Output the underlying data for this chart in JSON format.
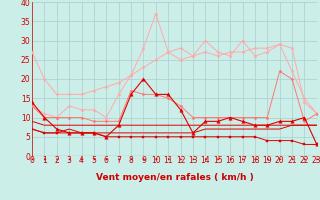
{
  "xlabel": "Vent moyen/en rafales ( km/h )",
  "background_color": "#cceee8",
  "grid_color": "#aacccc",
  "x_ticks": [
    0,
    1,
    2,
    3,
    4,
    5,
    6,
    7,
    8,
    9,
    10,
    11,
    12,
    13,
    14,
    15,
    16,
    17,
    18,
    19,
    20,
    21,
    22,
    23
  ],
  "ylim": [
    0,
    40
  ],
  "xlim": [
    0,
    23
  ],
  "yticks": [
    0,
    5,
    10,
    15,
    20,
    25,
    30,
    35,
    40
  ],
  "series": [
    {
      "color": "#ffaaaa",
      "linewidth": 0.7,
      "marker": "D",
      "markersize": 1.5,
      "data_x": [
        0,
        1,
        2,
        3,
        4,
        5,
        6,
        7,
        8,
        9,
        10,
        11,
        12,
        13,
        14,
        15,
        16,
        17,
        18,
        19,
        20,
        21,
        22,
        23
      ],
      "data_y": [
        27,
        20,
        16,
        16,
        16,
        17,
        18,
        19,
        21,
        23,
        25,
        27,
        28,
        26,
        27,
        26,
        27,
        27,
        28,
        28,
        29,
        22,
        15,
        11
      ]
    },
    {
      "color": "#ffaaaa",
      "linewidth": 0.7,
      "marker": "*",
      "markersize": 2.5,
      "data_x": [
        0,
        1,
        2,
        3,
        4,
        5,
        6,
        7,
        8,
        9,
        10,
        11,
        12,
        13,
        14,
        15,
        16,
        17,
        18,
        19,
        20,
        21,
        22,
        23
      ],
      "data_y": [
        13,
        11,
        10,
        13,
        12,
        12,
        10,
        16,
        21,
        28,
        37,
        27,
        25,
        26,
        30,
        27,
        26,
        30,
        26,
        27,
        29,
        28,
        14,
        11
      ]
    },
    {
      "color": "#ff7777",
      "linewidth": 0.7,
      "marker": "D",
      "markersize": 1.5,
      "data_x": [
        0,
        1,
        2,
        3,
        4,
        5,
        6,
        7,
        8,
        9,
        10,
        11,
        12,
        13,
        14,
        15,
        16,
        17,
        18,
        19,
        20,
        21,
        22,
        23
      ],
      "data_y": [
        13,
        10,
        10,
        10,
        10,
        9,
        9,
        9,
        17,
        16,
        16,
        15,
        13,
        10,
        10,
        10,
        10,
        10,
        10,
        10,
        22,
        20,
        9,
        11
      ]
    },
    {
      "color": "#dd0000",
      "linewidth": 0.8,
      "marker": "^",
      "markersize": 2.5,
      "data_x": [
        0,
        1,
        2,
        3,
        4,
        5,
        6,
        7,
        8,
        9,
        10,
        11,
        12,
        13,
        14,
        15,
        16,
        17,
        18,
        19,
        20,
        21,
        22,
        23
      ],
      "data_y": [
        14,
        10,
        7,
        6,
        6,
        6,
        5,
        8,
        16,
        20,
        16,
        16,
        12,
        6,
        9,
        9,
        10,
        9,
        8,
        8,
        9,
        9,
        10,
        3
      ]
    },
    {
      "color": "#dd0000",
      "linewidth": 0.7,
      "marker": "s",
      "markersize": 1.5,
      "data_x": [
        0,
        1,
        2,
        3,
        4,
        5,
        6,
        7,
        8,
        9,
        10,
        11,
        12,
        13,
        14,
        15,
        16,
        17,
        18,
        19,
        20,
        21,
        22,
        23
      ],
      "data_y": [
        7,
        6,
        6,
        6,
        6,
        6,
        5,
        5,
        5,
        5,
        5,
        5,
        5,
        5,
        5,
        5,
        5,
        5,
        5,
        4,
        4,
        4,
        3,
        3
      ]
    },
    {
      "color": "#dd0000",
      "linewidth": 0.7,
      "marker": null,
      "markersize": 0,
      "data_x": [
        0,
        1,
        2,
        3,
        4,
        5,
        6,
        7,
        8,
        9,
        10,
        11,
        12,
        13,
        14,
        15,
        16,
        17,
        18,
        19,
        20,
        21,
        22,
        23
      ],
      "data_y": [
        7,
        6,
        6,
        7,
        6,
        6,
        6,
        6,
        6,
        6,
        6,
        6,
        6,
        6,
        7,
        7,
        7,
        7,
        7,
        7,
        7,
        8,
        8,
        8
      ]
    },
    {
      "color": "#dd0000",
      "linewidth": 0.7,
      "marker": null,
      "markersize": 0,
      "data_x": [
        0,
        1,
        2,
        3,
        4,
        5,
        6,
        7,
        8,
        9,
        10,
        11,
        12,
        13,
        14,
        15,
        16,
        17,
        18,
        19,
        20,
        21,
        22,
        23
      ],
      "data_y": [
        9,
        8,
        8,
        8,
        8,
        8,
        8,
        8,
        8,
        8,
        8,
        8,
        8,
        8,
        8,
        8,
        8,
        8,
        8,
        8,
        8,
        8,
        8,
        8
      ]
    }
  ],
  "red_color": "#cc0000",
  "xlabel_fontsize": 6.5,
  "tick_fontsize": 5.5
}
